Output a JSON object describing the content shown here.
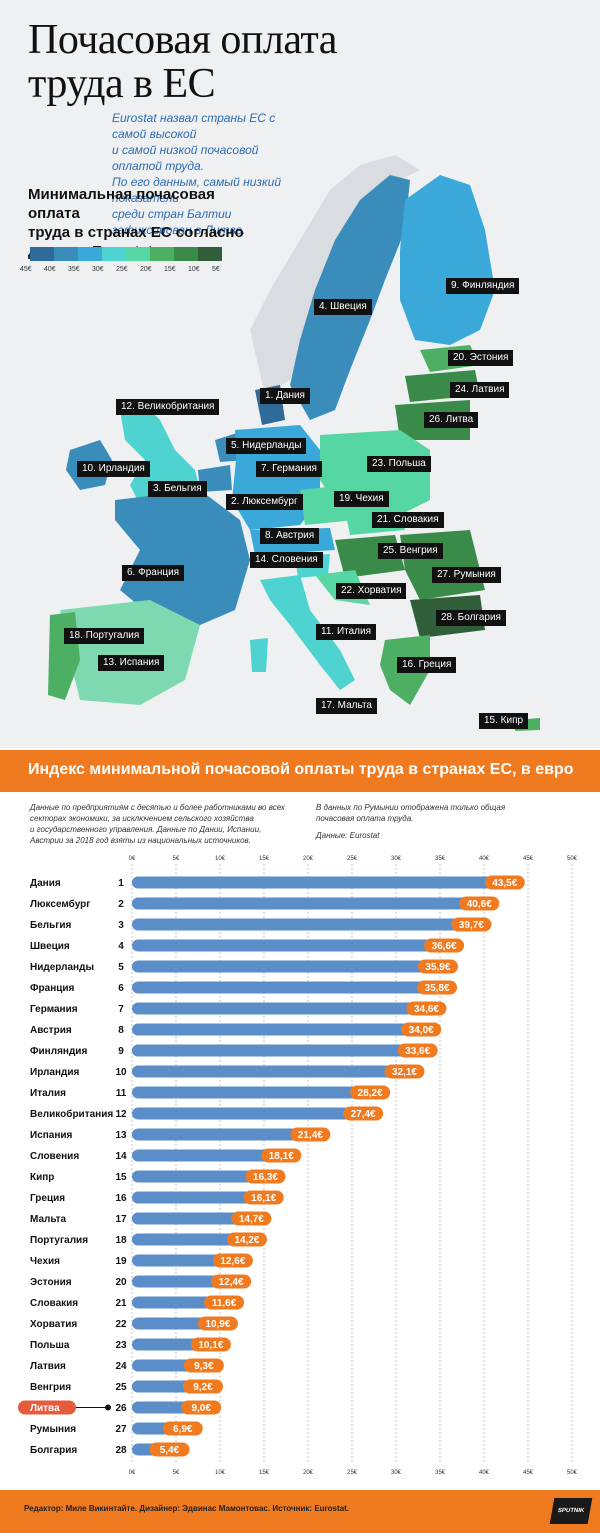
{
  "title_lines": [
    "Почасовая оплата",
    "труда в ЕС"
  ],
  "intro_lines": [
    "Eurostat назвал страны ЕС с самой высокой",
    "и самой низкой почасовой оплатой труда.",
    "По его данным, самый низкий показатель",
    "среди стран Балтии зафиксирован в Литве."
  ],
  "legend": {
    "title_lines": [
      "Минимальная почасовая оплата",
      "труда в странах ЕС согласно",
      "данным Eurostat, в евро"
    ],
    "colors": [
      "#2e6b9a",
      "#3a8dbb",
      "#3aa9d9",
      "#4fd3d1",
      "#55d6a2",
      "#4caf63",
      "#3a8a4a",
      "#2f5e38"
    ],
    "ticks": [
      "45€",
      "40€",
      "35€",
      "30€",
      "25€",
      "20€",
      "15€",
      "10€",
      "5€"
    ]
  },
  "map_labels": [
    "1. Дания",
    "2. Люксембург",
    "3. Бельгия",
    "4. Швеция",
    "5. Нидерланды",
    "6. Франция",
    "7. Германия",
    "8. Австрия",
    "9. Финляндия",
    "10. Ирландия",
    "11. Италия",
    "12. Великобритания",
    "13. Испания",
    "14. Словения",
    "15. Кипр",
    "16. Греция",
    "17. Мальта",
    "18. Португалия",
    "19. Чехия",
    "20. Эстония",
    "21. Словакия",
    "22. Хорватия",
    "23. Польша",
    "24. Латвия",
    "25. Венгрия",
    "26. Литва",
    "27. Румыния",
    "28. Болгария"
  ],
  "band_title": "Индекс минимальной почасовой оплаты труда в странах ЕС, в евро",
  "note_left_lines": [
    "Данные по предприятиям с десятью и более работниками во всех",
    "секторах экономики, за исключением сельского хозяйства",
    "и государственного управления. Данные по Дании, Испании,",
    "Австрии за 2018 год взяты из национальных источников."
  ],
  "note_right_lines": [
    "В данных по Румынии отображена только общая",
    "почасовая оплата труда."
  ],
  "note_source": "Данные: Eurostat",
  "chart_data": {
    "type": "bar",
    "orientation": "horizontal",
    "title": "Индекс минимальной почасовой оплаты труда в странах ЕС, в евро",
    "categories": [
      "Дания",
      "Люксембург",
      "Бельгия",
      "Швеция",
      "Нидерланды",
      "Франция",
      "Германия",
      "Австрия",
      "Финляндия",
      "Ирландия",
      "Италия",
      "Великобритания",
      "Испания",
      "Словения",
      "Кипр",
      "Греция",
      "Мальта",
      "Португалия",
      "Чехия",
      "Эстония",
      "Словакия",
      "Хорватия",
      "Польша",
      "Латвия",
      "Венгрия",
      "Литва",
      "Румыния",
      "Болгария"
    ],
    "ranks": [
      "1",
      "2",
      "3",
      "4",
      "5",
      "6",
      "7",
      "8",
      "9",
      "10",
      "11",
      "12",
      "13",
      "14",
      "15",
      "16",
      "17",
      "18",
      "19",
      "20",
      "21",
      "22",
      "23",
      "24",
      "25",
      "26",
      "27",
      "28"
    ],
    "values": [
      43.5,
      40.6,
      39.7,
      36.6,
      35.9,
      35.8,
      34.6,
      34.0,
      33.6,
      32.1,
      28.2,
      27.4,
      21.4,
      18.1,
      16.3,
      16.1,
      14.7,
      14.2,
      12.6,
      12.4,
      11.6,
      10.9,
      10.1,
      9.3,
      9.2,
      9.0,
      6.9,
      5.4
    ],
    "value_labels": [
      "43,5€",
      "40,6€",
      "39,7€",
      "36,6€",
      "35,9€",
      "35,8€",
      "34,6€",
      "34,0€",
      "33,6€",
      "32,1€",
      "28,2€",
      "27,4€",
      "21,4€",
      "18,1€",
      "16,3€",
      "16,1€",
      "14,7€",
      "14,2€",
      "12,6€",
      "12,4€",
      "11,6€",
      "10,9€",
      "10,1€",
      "9,3€",
      "9,2€",
      "9,0€",
      "6,9€",
      "5,4€"
    ],
    "xlim": [
      0,
      50
    ],
    "x_ticks": [
      "0€",
      "5€",
      "10€",
      "15€",
      "20€",
      "25€",
      "30€",
      "35€",
      "40€",
      "45€",
      "50€"
    ],
    "highlight": "Литва",
    "colors": {
      "bar": "#5b8ec9",
      "value_bubble": "#f07a1f",
      "highlight": "#e85a3c",
      "grid": "#9aa3ad"
    }
  },
  "footer_text": "Редактор: Миле Викинтайте.  Дизайнер: Эдвинас Мамонтовас.  Источник: Eurostat.",
  "logo_text": "SPUTNIK"
}
